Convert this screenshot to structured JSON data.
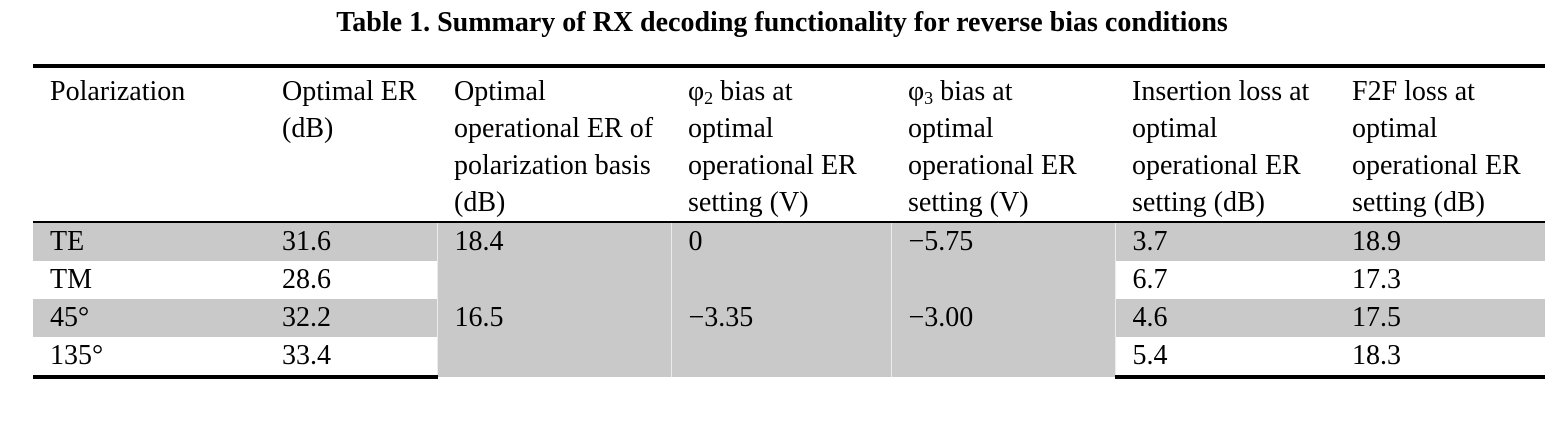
{
  "caption": "Table 1. Summary of RX decoding functionality for reverse bias conditions",
  "table": {
    "headers": {
      "polarization": "Polarization",
      "optimal_er": "Optimal ER (dB)",
      "optimal_operational_er": "Optimal operational ER of polarization basis (dB)",
      "phi2": {
        "symbol": "φ",
        "subscript": "2",
        "text": " bias at optimal operational ER setting (V)"
      },
      "phi3": {
        "symbol": "φ",
        "subscript": "3",
        "text": " bias at optimal operational ER setting (V)"
      },
      "insertion_loss": "Insertion loss at optimal operational ER setting (dB)",
      "f2f_loss": "F2F loss at optimal operational ER setting (dB)"
    },
    "rows": [
      {
        "polarization": "TE",
        "optimal_er": "31.6",
        "insertion_loss": "3.7",
        "f2f_loss": "18.9"
      },
      {
        "polarization": "TM",
        "optimal_er": "28.6",
        "insertion_loss": "6.7",
        "f2f_loss": "17.3"
      },
      {
        "polarization": "45°",
        "optimal_er": "32.2",
        "insertion_loss": "4.6",
        "f2f_loss": "17.5"
      },
      {
        "polarization": "135°",
        "optimal_er": "33.4",
        "insertion_loss": "5.4",
        "f2f_loss": "18.3"
      }
    ],
    "bases": [
      {
        "optimal_operational_er": "18.4",
        "phi2_bias": "0",
        "phi3_bias": "−5.75"
      },
      {
        "optimal_operational_er": "16.5",
        "phi2_bias": "−3.35",
        "phi3_bias": "−3.00"
      }
    ]
  },
  "colors": {
    "shaded_row": "#c9c9c9",
    "rule": "#000000",
    "text": "#000000"
  }
}
